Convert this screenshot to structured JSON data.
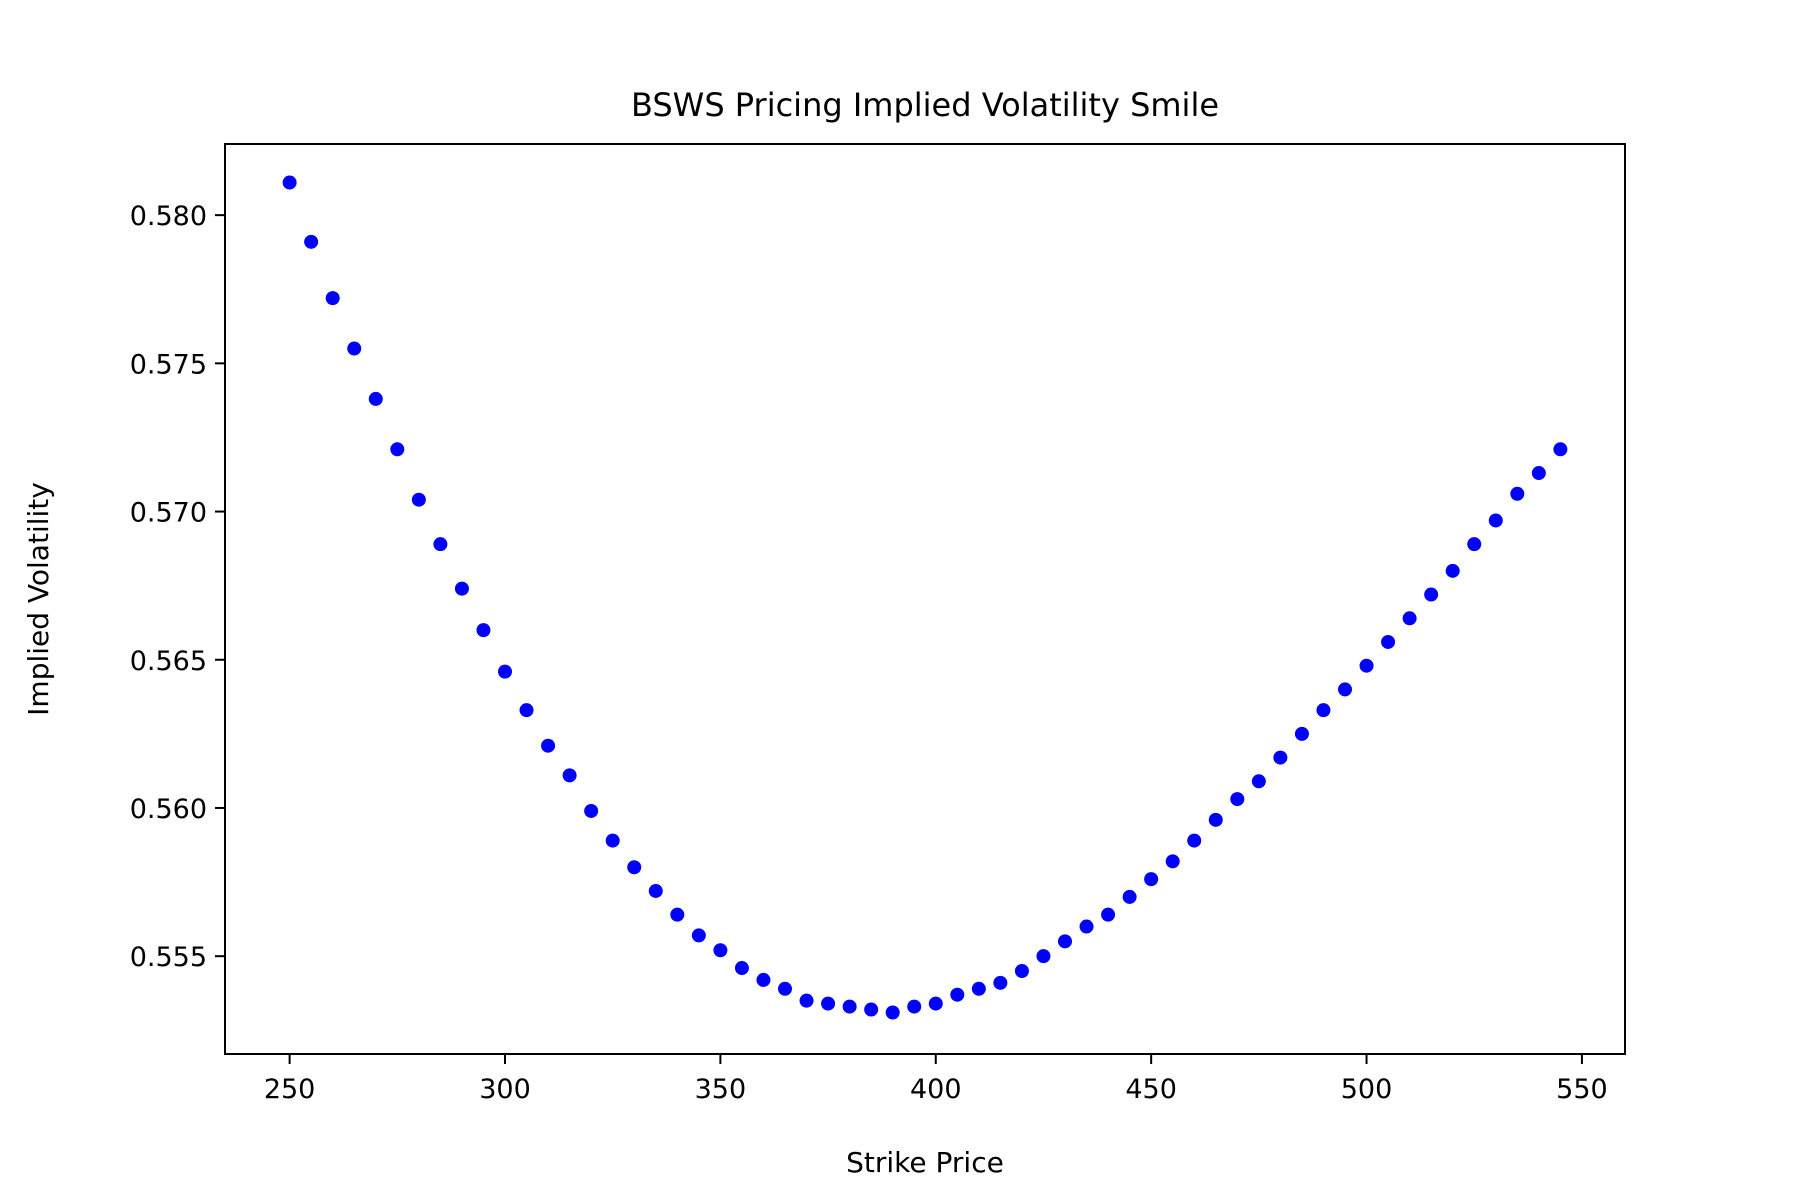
{
  "chart_data": {
    "type": "scatter",
    "title": "BSWS Pricing Implied Volatility Smile",
    "xlabel": "Strike Price",
    "ylabel": "Implied Volatility",
    "xlim": [
      235,
      560
    ],
    "ylim": [
      0.5517,
      0.5824
    ],
    "x_ticks": [
      250,
      300,
      350,
      400,
      450,
      500,
      550
    ],
    "x_tick_labels": [
      "250",
      "300",
      "350",
      "400",
      "450",
      "500",
      "550"
    ],
    "y_ticks": [
      0.555,
      0.56,
      0.565,
      0.57,
      0.575,
      0.58
    ],
    "y_tick_labels": [
      "0.555",
      "0.560",
      "0.565",
      "0.570",
      "0.575",
      "0.580"
    ],
    "grid": false,
    "marker_color": "#0000ff",
    "series": [
      {
        "x": [
          250,
          255,
          260,
          265,
          270,
          275,
          280,
          285,
          290,
          295,
          300,
          305,
          310,
          315,
          320,
          325,
          330,
          335,
          340,
          345,
          350,
          355,
          360,
          365,
          370,
          375,
          380,
          385,
          390,
          395,
          400,
          405,
          410,
          415,
          420,
          425,
          430,
          435,
          440,
          445,
          450,
          455,
          460,
          465,
          470,
          475,
          480,
          485,
          490,
          495,
          500,
          505,
          510,
          515,
          520,
          525,
          530,
          535,
          540,
          545
        ],
        "y": [
          0.5811,
          0.5791,
          0.5772,
          0.5755,
          0.5738,
          0.5721,
          0.5704,
          0.5689,
          0.5674,
          0.566,
          0.5646,
          0.5633,
          0.5621,
          0.5611,
          0.5599,
          0.5589,
          0.558,
          0.5572,
          0.5564,
          0.5557,
          0.5552,
          0.5546,
          0.5542,
          0.5539,
          0.5535,
          0.5534,
          0.5533,
          0.5532,
          0.5531,
          0.5533,
          0.5534,
          0.5537,
          0.5539,
          0.5541,
          0.5545,
          0.555,
          0.5555,
          0.556,
          0.5564,
          0.557,
          0.5576,
          0.5582,
          0.5589,
          0.5596,
          0.5603,
          0.5609,
          0.5617,
          0.5625,
          0.5633,
          0.564,
          0.5648,
          0.5656,
          0.5664,
          0.5672,
          0.568,
          0.5689,
          0.5697,
          0.5706,
          0.5713,
          0.5721
        ]
      }
    ]
  }
}
